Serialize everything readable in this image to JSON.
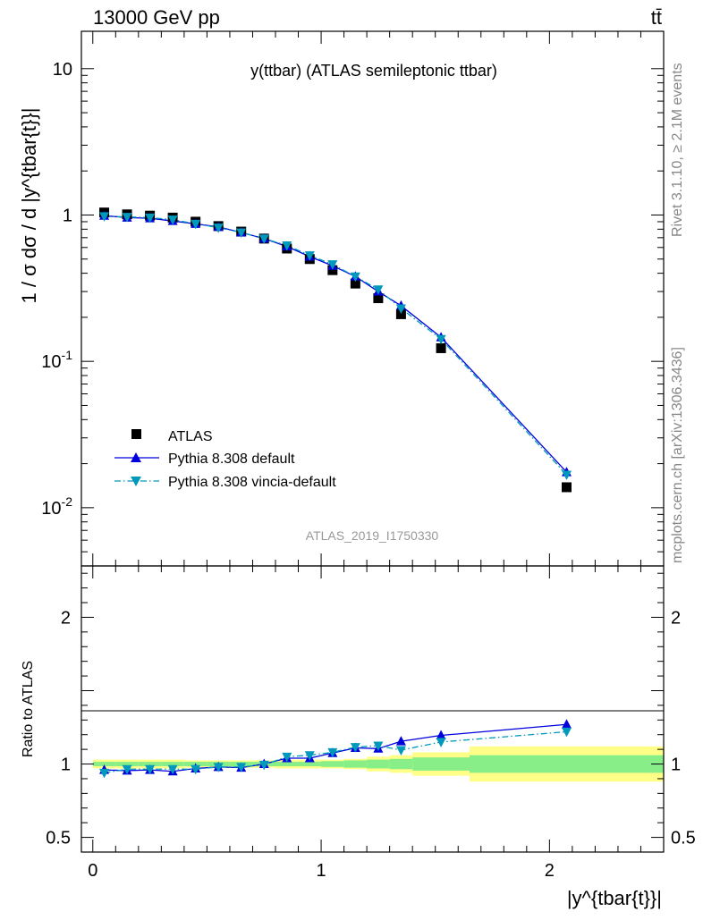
{
  "header": {
    "left": "13000 GeV pp",
    "right": "tt̄"
  },
  "side_labels": {
    "rivet": "Rivet 3.1.10, ≥ 2.1M events",
    "mcplots": "mcplots.cern.ch [arXiv:1306.3436]"
  },
  "colors": {
    "atlas": "#000000",
    "pythia_default": "#0000dd",
    "vincia": "#0099bb",
    "band_outer": "#ffff88",
    "band_inner": "#88ee88"
  },
  "chart_data": [
    {
      "type": "scatter",
      "panel": "main",
      "title": "y(ttbar) (ATLAS semileptonic ttbar)",
      "watermark": "ATLAS_2019_I1750330",
      "ylabel": "1 / σ dσ / d |y^{tbar{t}}|",
      "yscale": "log",
      "xlim": [
        -0.05,
        2.5
      ],
      "ylim": [
        0.004,
        18
      ],
      "ytick_labels": [
        "10",
        "1",
        "10^-1",
        "10^-2"
      ],
      "legend_position": "lower-left",
      "bin_edges": [
        0,
        0.1,
        0.2,
        0.3,
        0.4,
        0.5,
        0.6,
        0.7,
        0.8,
        0.9,
        1.0,
        1.1,
        1.2,
        1.3,
        1.4,
        1.65,
        2.5
      ],
      "x": [
        0.05,
        0.15,
        0.25,
        0.35,
        0.45,
        0.55,
        0.65,
        0.75,
        0.85,
        0.95,
        1.05,
        1.15,
        1.25,
        1.35,
        1.525,
        2.075
      ],
      "series": [
        {
          "name": "ATLAS",
          "marker": "square",
          "values": [
            1.04,
            1.01,
            0.99,
            0.96,
            0.9,
            0.84,
            0.77,
            0.69,
            0.59,
            0.5,
            0.42,
            0.34,
            0.27,
            0.21,
            0.123,
            0.0138
          ]
        },
        {
          "name": "Pythia 8.308 default",
          "marker": "triangle-up",
          "line": "solid",
          "values": [
            0.99,
            0.96,
            0.95,
            0.91,
            0.87,
            0.83,
            0.76,
            0.69,
            0.61,
            0.52,
            0.45,
            0.38,
            0.3,
            0.24,
            0.146,
            0.0175
          ]
        },
        {
          "name": "Pythia 8.308 vincia-default",
          "marker": "triangle-down",
          "line": "dashdot",
          "values": [
            0.98,
            0.97,
            0.96,
            0.93,
            0.87,
            0.82,
            0.76,
            0.69,
            0.62,
            0.53,
            0.46,
            0.38,
            0.31,
            0.23,
            0.142,
            0.0168
          ]
        }
      ]
    },
    {
      "type": "scatter",
      "panel": "ratio",
      "ylabel": "Ratio to ATLAS",
      "xlabel": "|y^{tbar{t}}|",
      "xlim": [
        -0.05,
        2.5
      ],
      "ylim": [
        0.4,
        2.35
      ],
      "xtick_labels": [
        "0",
        "1",
        "2"
      ],
      "ytick_labels": [
        "2",
        "1",
        "0.5"
      ],
      "bin_edges": [
        0,
        0.1,
        0.2,
        0.3,
        0.4,
        0.5,
        0.6,
        0.7,
        0.8,
        0.9,
        1.0,
        1.1,
        1.2,
        1.3,
        1.4,
        1.65,
        2.5
      ],
      "band_stat_plus_sys": [
        0.03,
        0.03,
        0.03,
        0.03,
        0.025,
        0.025,
        0.025,
        0.025,
        0.03,
        0.03,
        0.03,
        0.035,
        0.05,
        0.06,
        0.08,
        0.12
      ],
      "band_stat": [
        0.015,
        0.015,
        0.015,
        0.015,
        0.015,
        0.015,
        0.015,
        0.015,
        0.015,
        0.015,
        0.02,
        0.025,
        0.03,
        0.035,
        0.045,
        0.06
      ],
      "x": [
        0.05,
        0.15,
        0.25,
        0.35,
        0.45,
        0.55,
        0.65,
        0.75,
        0.85,
        0.95,
        1.05,
        1.15,
        1.25,
        1.35,
        1.525,
        2.075
      ],
      "series": [
        {
          "name": "Pythia 8.308 default",
          "values": [
            0.96,
            0.955,
            0.96,
            0.95,
            0.97,
            0.98,
            0.975,
            1.0,
            1.04,
            1.04,
            1.075,
            1.11,
            1.105,
            1.155,
            1.195,
            1.27
          ]
        },
        {
          "name": "Pythia 8.308 vincia-default",
          "values": [
            0.94,
            0.965,
            0.965,
            0.965,
            0.965,
            0.98,
            0.98,
            0.995,
            1.05,
            1.06,
            1.08,
            1.115,
            1.125,
            1.095,
            1.15,
            1.22
          ]
        }
      ]
    }
  ]
}
